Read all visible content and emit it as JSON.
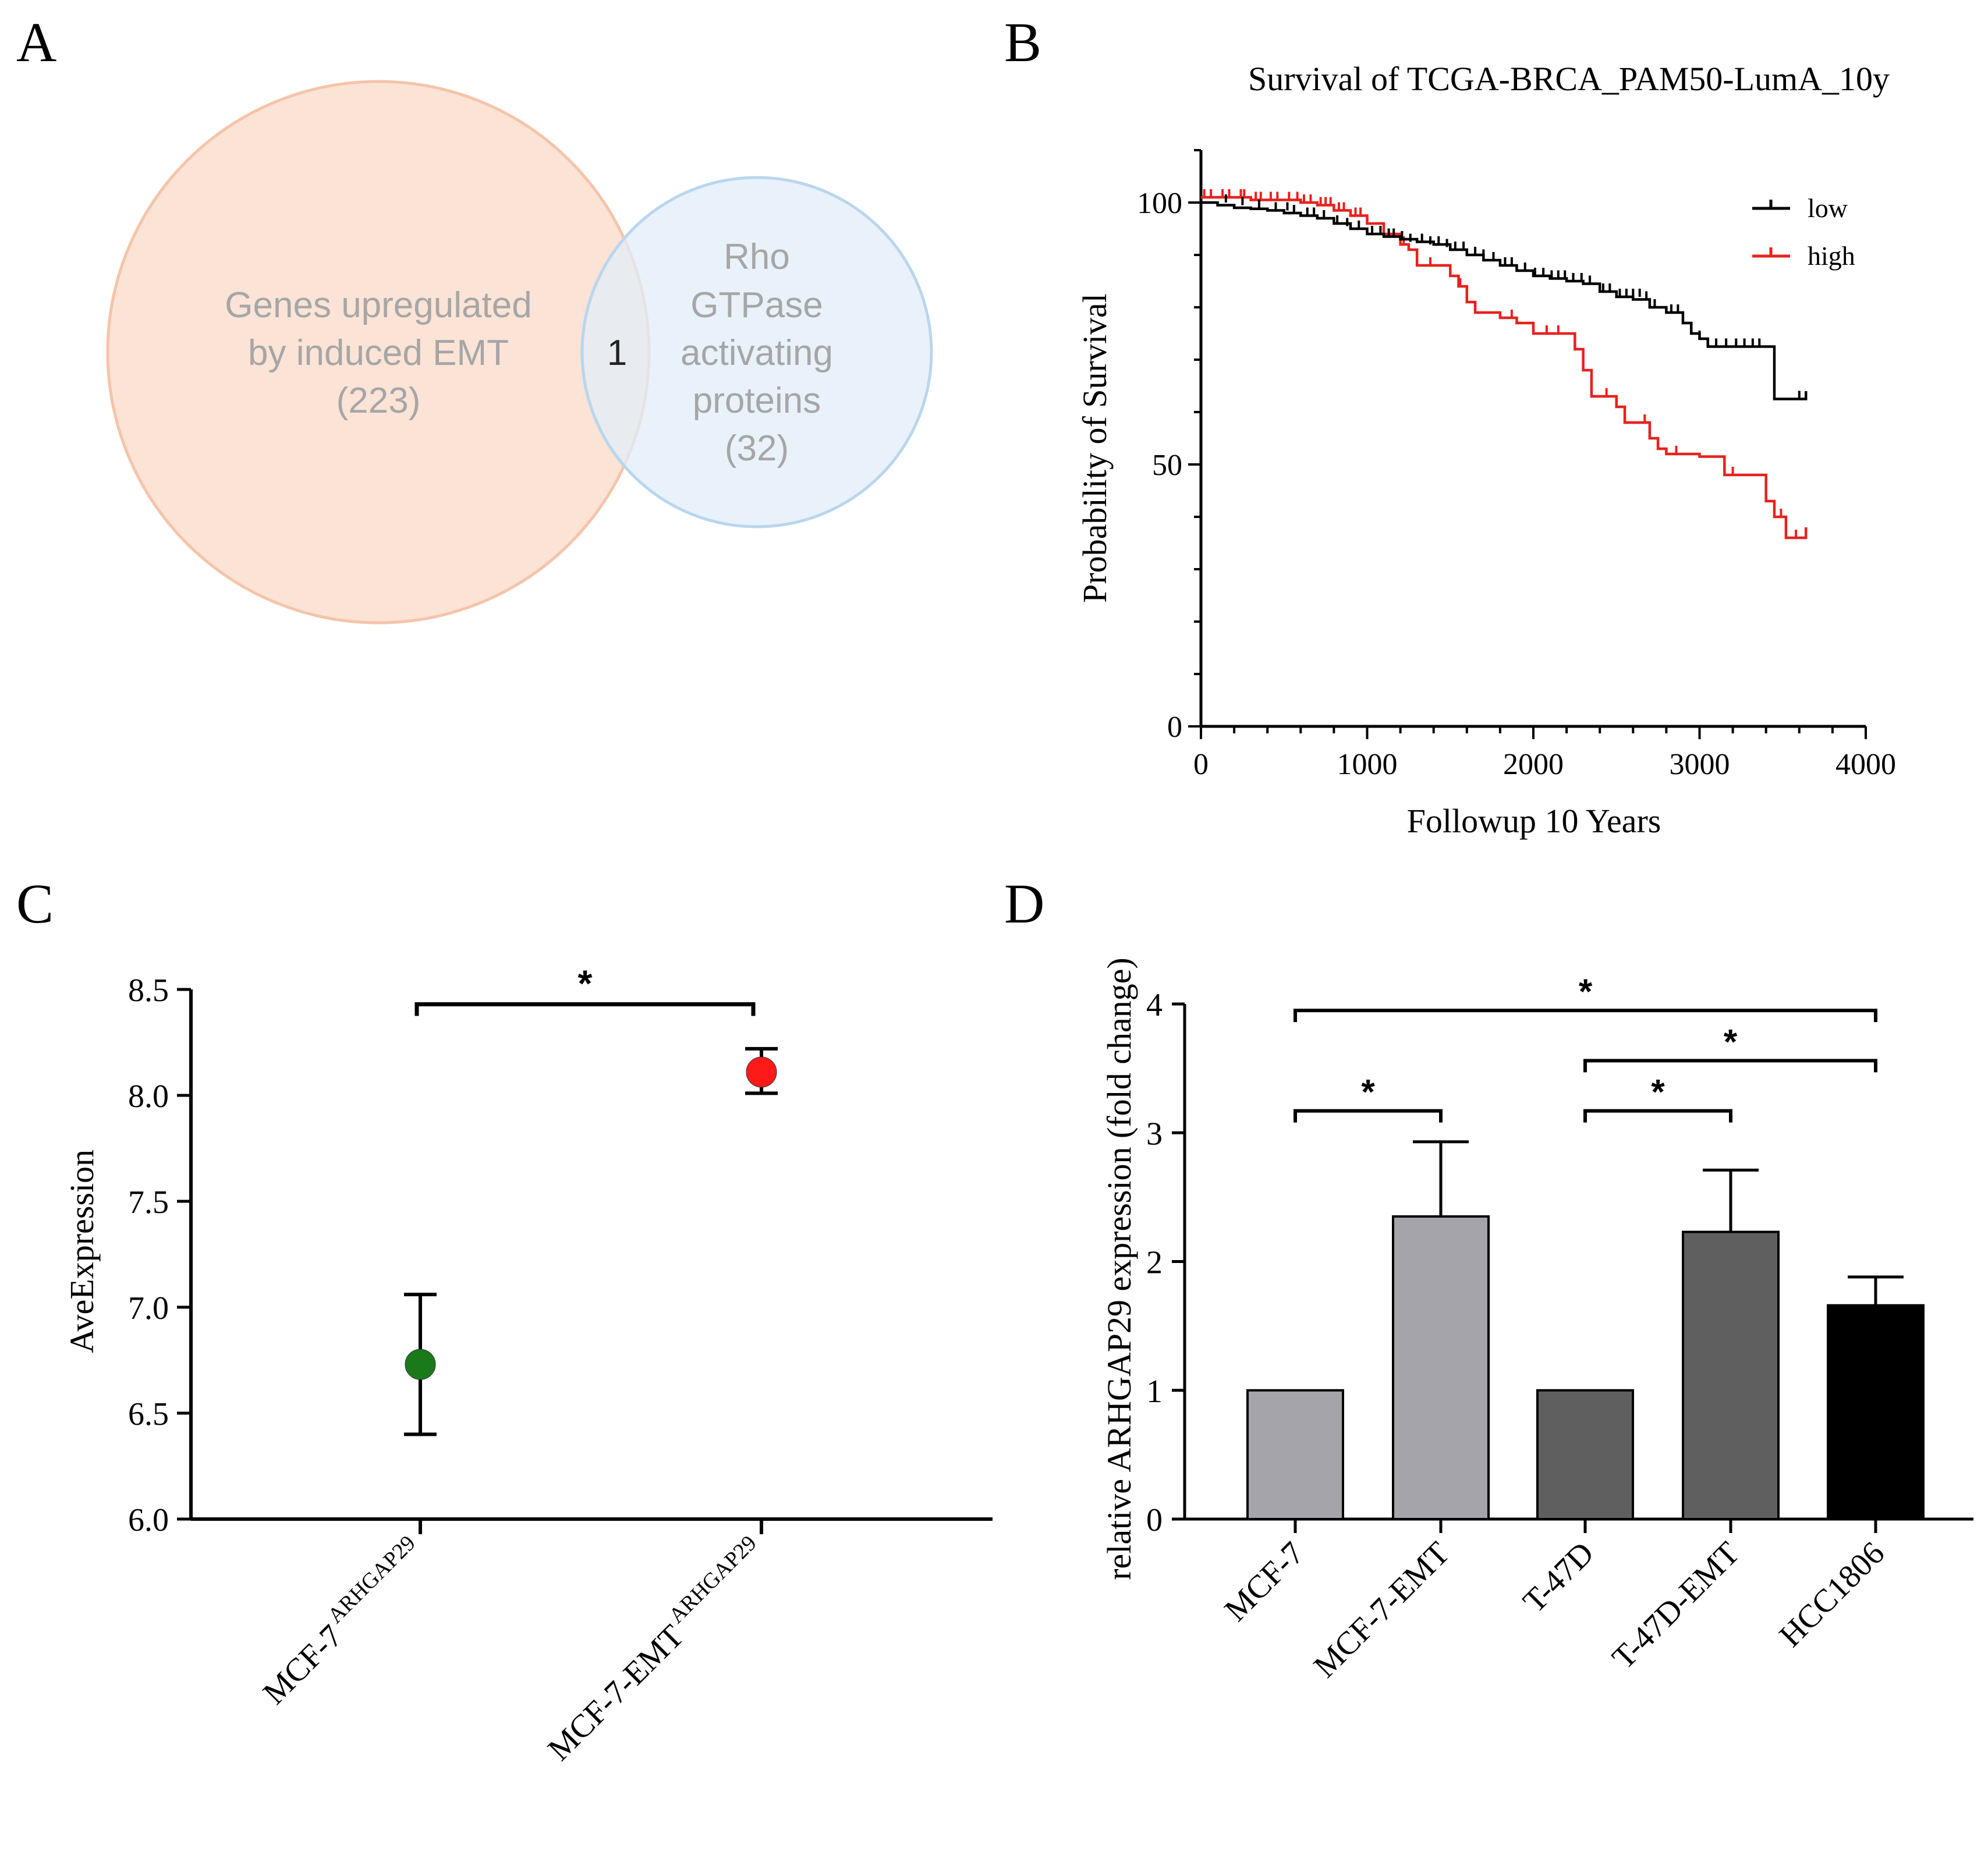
{
  "panel_labels": {
    "a": "A",
    "b": "B",
    "c": "C",
    "d": "D"
  },
  "colors": {
    "venn_left_fill": "#fbe3d6",
    "venn_left_stroke": "#f5c4a9",
    "venn_right_fill": "#e2eef8",
    "venn_right_stroke": "#b9d6ee",
    "venn_text": "#a6a6a6",
    "low": "#000000",
    "high": "#e8211d",
    "point_mcf7": "#1a7a1a",
    "point_emt": "#ff1a1a",
    "bar_light": "#a5a4aa",
    "bar_dark": "#5f5f5f",
    "bar_black": "#000000"
  },
  "chart_data": [
    {
      "panel": "A",
      "type": "venn",
      "sets": [
        {
          "name_lines": [
            "Genes upregulated",
            "by induced EMT"
          ],
          "size_label": "(223)",
          "size": 223
        },
        {
          "name_lines": [
            "Rho",
            "GTPase",
            "activating",
            "proteins"
          ],
          "size_label": "(32)",
          "size": 32
        }
      ],
      "intersection": "1"
    },
    {
      "panel": "B",
      "type": "line",
      "title": "Survival of TCGA-BRCA_PAM50-LumA_10y",
      "xlabel": "Followup 10 Years",
      "ylabel": "Probability of Survival",
      "xlim": [
        0,
        4000
      ],
      "ylim": [
        0,
        110
      ],
      "xticks": [
        "0",
        "1000",
        "2000",
        "3000",
        "4000"
      ],
      "yticks": [
        "0",
        "50",
        "100"
      ],
      "legend": [
        "low",
        "high"
      ],
      "series": [
        {
          "name": "low",
          "steps": [
            [
              0,
              100
            ],
            [
              50,
              100
            ],
            [
              100,
              99.5
            ],
            [
              200,
              99
            ],
            [
              300,
              98.8
            ],
            [
              400,
              98.5
            ],
            [
              500,
              98
            ],
            [
              600,
              97.5
            ],
            [
              700,
              97
            ],
            [
              800,
              96
            ],
            [
              900,
              95
            ],
            [
              1000,
              94
            ],
            [
              1100,
              93.5
            ],
            [
              1200,
              93
            ],
            [
              1300,
              92.5
            ],
            [
              1400,
              92
            ],
            [
              1500,
              91
            ],
            [
              1600,
              90
            ],
            [
              1700,
              89
            ],
            [
              1800,
              88
            ],
            [
              1900,
              87
            ],
            [
              2000,
              86
            ],
            [
              2100,
              85.5
            ],
            [
              2200,
              85
            ],
            [
              2300,
              84.5
            ],
            [
              2400,
              83
            ],
            [
              2500,
              82
            ],
            [
              2600,
              81.5
            ],
            [
              2700,
              80
            ],
            [
              2800,
              79
            ],
            [
              2900,
              77
            ],
            [
              2950,
              75
            ],
            [
              3000,
              74
            ],
            [
              3050,
              72.5
            ],
            [
              3450,
              72.5
            ],
            [
              3450,
              62.5
            ],
            [
              3640,
              62.5
            ],
            [
              3640,
              64
            ]
          ],
          "censor_marks": [
            [
              150,
              100
            ],
            [
              250,
              99.5
            ],
            [
              350,
              99
            ],
            [
              450,
              98.5
            ],
            [
              520,
              98.5
            ],
            [
              560,
              98
            ],
            [
              640,
              97.5
            ],
            [
              680,
              97.5
            ],
            [
              740,
              97
            ],
            [
              820,
              96
            ],
            [
              880,
              95.5
            ],
            [
              950,
              95
            ],
            [
              1030,
              94
            ],
            [
              1080,
              94
            ],
            [
              1130,
              93.5
            ],
            [
              1160,
              93.5
            ],
            [
              1210,
              93
            ],
            [
              1260,
              92.5
            ],
            [
              1330,
              92.5
            ],
            [
              1380,
              92
            ],
            [
              1430,
              92
            ],
            [
              1480,
              91.5
            ],
            [
              1530,
              91
            ],
            [
              1580,
              91
            ],
            [
              1650,
              90
            ],
            [
              1700,
              89.5
            ],
            [
              1760,
              89
            ],
            [
              1830,
              88
            ],
            [
              1870,
              88
            ],
            [
              1950,
              87
            ],
            [
              2010,
              86
            ],
            [
              2060,
              86
            ],
            [
              2110,
              85.5
            ],
            [
              2150,
              85.5
            ],
            [
              2190,
              85.5
            ],
            [
              2240,
              85
            ],
            [
              2290,
              85
            ],
            [
              2340,
              84.5
            ],
            [
              2420,
              83
            ],
            [
              2460,
              83
            ],
            [
              2520,
              82
            ],
            [
              2560,
              82
            ],
            [
              2600,
              82
            ],
            [
              2640,
              82
            ],
            [
              2680,
              81.5
            ],
            [
              2730,
              80
            ],
            [
              2830,
              79
            ],
            [
              2870,
              79
            ],
            [
              3000,
              74
            ],
            [
              3050,
              72.5
            ],
            [
              3100,
              72.5
            ],
            [
              3160,
              72.5
            ],
            [
              3220,
              72.5
            ],
            [
              3270,
              72.5
            ],
            [
              3320,
              72.5
            ],
            [
              3360,
              72.5
            ],
            [
              3600,
              62.5
            ]
          ]
        },
        {
          "name": "high",
          "steps": [
            [
              0,
              101
            ],
            [
              100,
              101
            ],
            [
              200,
              101
            ],
            [
              300,
              100.5
            ],
            [
              400,
              100.5
            ],
            [
              500,
              100.5
            ],
            [
              600,
              100
            ],
            [
              700,
              99.5
            ],
            [
              800,
              98.5
            ],
            [
              900,
              97.5
            ],
            [
              1000,
              96
            ],
            [
              1100,
              94
            ],
            [
              1200,
              92
            ],
            [
              1250,
              91
            ],
            [
              1300,
              88
            ],
            [
              1400,
              88
            ],
            [
              1500,
              86
            ],
            [
              1550,
              84
            ],
            [
              1600,
              81
            ],
            [
              1650,
              79
            ],
            [
              1750,
              79
            ],
            [
              1800,
              78
            ],
            [
              1900,
              77
            ],
            [
              2000,
              75
            ],
            [
              2050,
              75
            ],
            [
              2150,
              75
            ],
            [
              2250,
              72
            ],
            [
              2300,
              68
            ],
            [
              2350,
              63
            ],
            [
              2450,
              63
            ],
            [
              2500,
              61
            ],
            [
              2550,
              58
            ],
            [
              2650,
              58
            ],
            [
              2700,
              55
            ],
            [
              2750,
              53
            ],
            [
              2800,
              52
            ],
            [
              2900,
              52
            ],
            [
              3000,
              51.5
            ],
            [
              3100,
              51.5
            ],
            [
              3150,
              48
            ],
            [
              3350,
              48
            ],
            [
              3400,
              43
            ],
            [
              3450,
              40
            ],
            [
              3520,
              36
            ],
            [
              3640,
              36
            ],
            [
              3640,
              38
            ]
          ],
          "censor_marks": [
            [
              20,
              101
            ],
            [
              60,
              101
            ],
            [
              130,
              101
            ],
            [
              170,
              101
            ],
            [
              240,
              101
            ],
            [
              260,
              101
            ],
            [
              330,
              100.5
            ],
            [
              360,
              100.5
            ],
            [
              420,
              100.5
            ],
            [
              460,
              100.5
            ],
            [
              530,
              100.5
            ],
            [
              580,
              100.5
            ],
            [
              620,
              100
            ],
            [
              660,
              100
            ],
            [
              720,
              99.5
            ],
            [
              750,
              99.5
            ],
            [
              780,
              99.5
            ],
            [
              830,
              98.5
            ],
            [
              860,
              98.5
            ],
            [
              930,
              97.5
            ],
            [
              960,
              97.5
            ],
            [
              1220,
              92
            ],
            [
              1380,
              88
            ],
            [
              1560,
              84
            ],
            [
              1870,
              78
            ],
            [
              2080,
              75
            ],
            [
              2150,
              75
            ],
            [
              2440,
              63
            ],
            [
              2670,
              58
            ],
            [
              2860,
              52
            ],
            [
              3200,
              48
            ],
            [
              3490,
              40
            ],
            [
              3580,
              36
            ]
          ]
        }
      ]
    },
    {
      "panel": "C",
      "type": "scatter",
      "ylabel": "AveExpression",
      "ylim": [
        6.0,
        8.5
      ],
      "yticks": [
        "6.0",
        "6.5",
        "7.0",
        "7.5",
        "8.0",
        "8.5"
      ],
      "categories": [
        {
          "main": "MCF-7",
          "sup": "ARHGAP29"
        },
        {
          "main": "MCF-7-EMT",
          "sup": "ARHGAP29"
        }
      ],
      "values": [
        6.73,
        8.11
      ],
      "errors": [
        [
          6.4,
          7.06
        ],
        [
          8.01,
          8.22
        ]
      ],
      "significance": {
        "from": 0,
        "to": 1,
        "label": "*",
        "y": 8.43
      }
    },
    {
      "panel": "D",
      "type": "bar",
      "ylabel": "relative ARHGAP29 expression (fold change)",
      "ylim": [
        0,
        4
      ],
      "yticks": [
        "0",
        "1",
        "2",
        "3",
        "4"
      ],
      "categories": [
        "MCF-7",
        "MCF-7-EMT",
        "T-47D",
        "T-47D-EMT",
        "HCC1806"
      ],
      "values": [
        1.0,
        2.35,
        1.0,
        2.23,
        1.66
      ],
      "errors": [
        0,
        0.58,
        0,
        0.48,
        0.22
      ],
      "bar_colors": [
        "light",
        "light",
        "dark",
        "dark",
        "black"
      ],
      "significance": [
        {
          "from": 0,
          "to": 1,
          "label": "*",
          "y": 3.17
        },
        {
          "from": 2,
          "to": 3,
          "label": "*",
          "y": 3.17
        },
        {
          "from": 2,
          "to": 4,
          "label": "*",
          "y": 3.56
        },
        {
          "from": 0,
          "to": 4,
          "label": "*",
          "y": 3.95
        }
      ]
    }
  ]
}
